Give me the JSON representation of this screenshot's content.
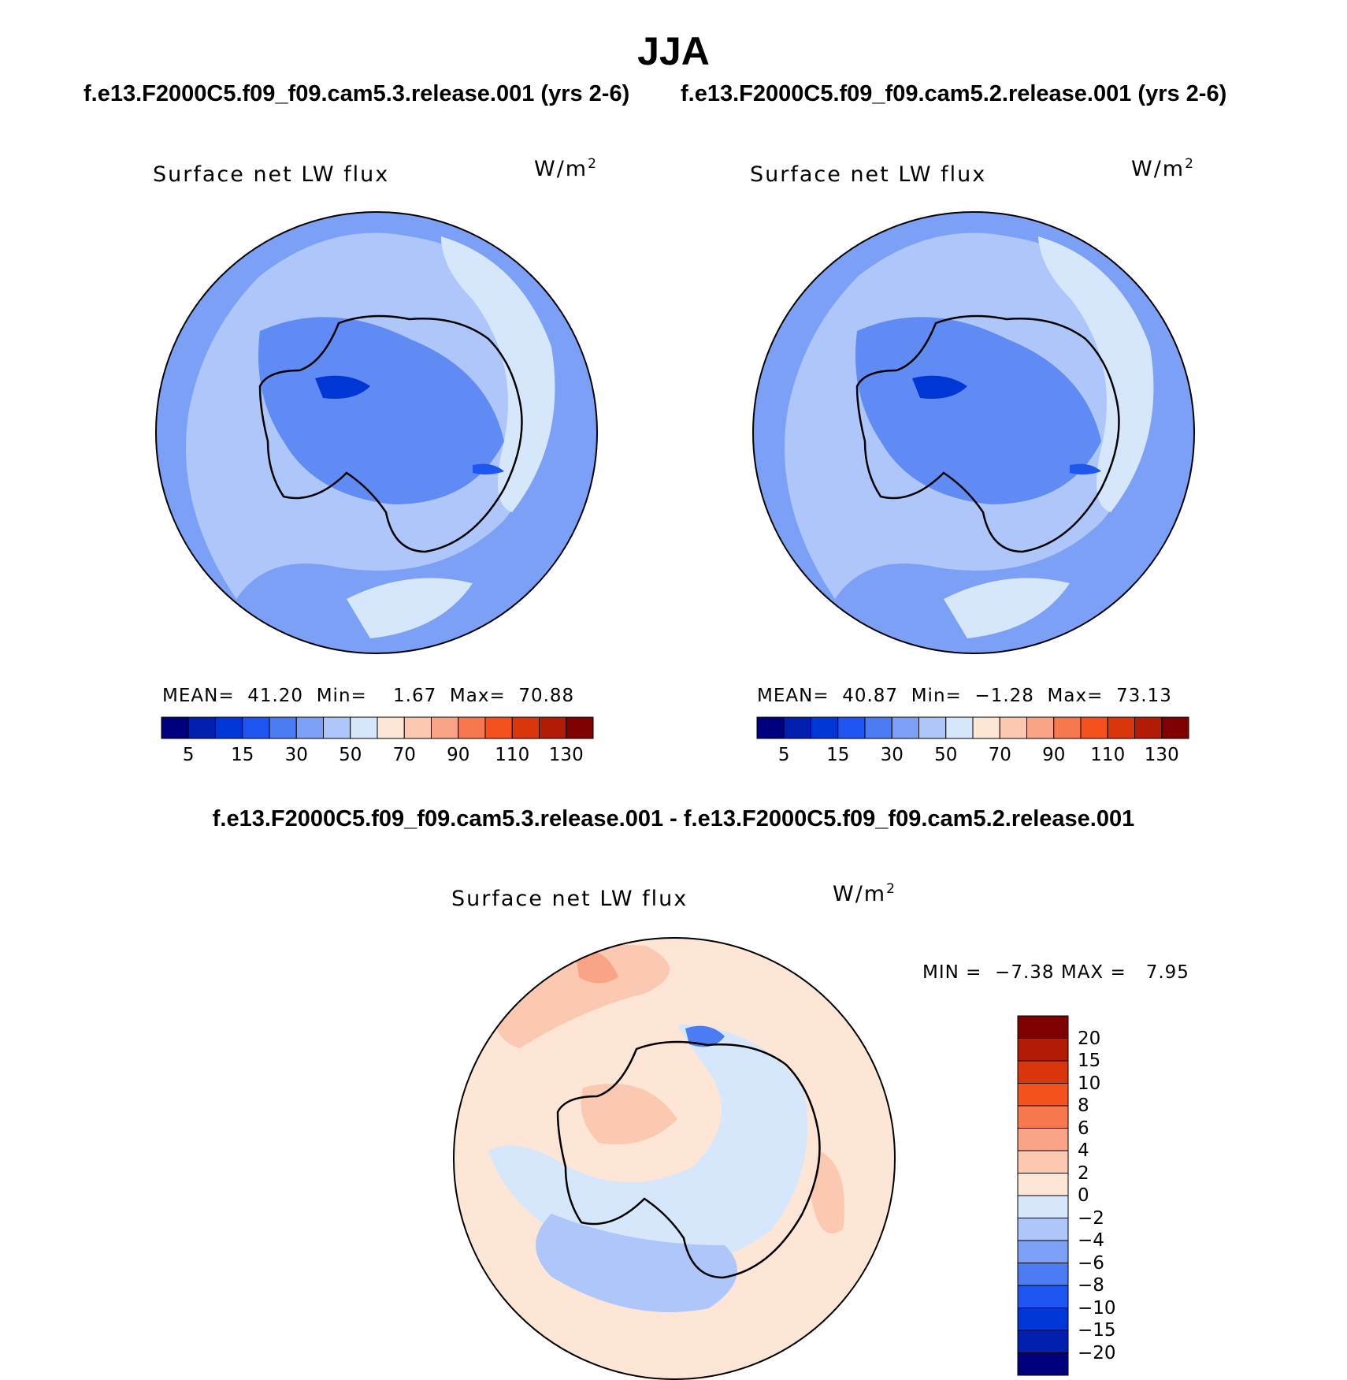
{
  "figure": {
    "title": "JJA",
    "subtitle_left": "f.e13.F2000C5.f09_f09.cam5.3.release.001 (yrs 2-6)",
    "subtitle_right": "f.e13.F2000C5.f09_f09.cam5.2.release.001 (yrs 2-6)",
    "diff_title": "f.e13.F2000C5.f09_f09.cam5.3.release.001 - f.e13.F2000C5.f09_f09.cam5.2.release.001"
  },
  "colors": {
    "abs_scale": [
      "#00007f",
      "#001fae",
      "#0036d6",
      "#1f55f0",
      "#4c7cf4",
      "#7da0f7",
      "#aec6fa",
      "#d6e6fb",
      "#fde6d6",
      "#fbc8b2",
      "#f9a486",
      "#f7784f",
      "#f5511f",
      "#db350c",
      "#b21b05",
      "#7f0000"
    ],
    "diff_scale": [
      "#7f0000",
      "#b21b05",
      "#db350c",
      "#f5511f",
      "#f7784f",
      "#f9a486",
      "#fbc8b2",
      "#fde6d6",
      "#d6e6fb",
      "#aec6fa",
      "#7da0f7",
      "#4c7cf4",
      "#1f55f0",
      "#0036d6",
      "#001fae",
      "#00007f"
    ]
  },
  "chart_data": [
    {
      "type": "heatmap",
      "projection": "south-polar stereographic",
      "title": "Surface net LW flux",
      "units_base": "W/m",
      "units_exp": "2",
      "stats": {
        "mean_label": "MEAN=",
        "mean": "41.20",
        "min_label": "Min=",
        "min": "1.67",
        "max_label": "Max=",
        "max": "70.88"
      },
      "colorbar": {
        "levels": [
          "5",
          "15",
          "30",
          "50",
          "70",
          "90",
          "110",
          "130"
        ]
      }
    },
    {
      "type": "heatmap",
      "projection": "south-polar stereographic",
      "title": "Surface net LW flux",
      "units_base": "W/m",
      "units_exp": "2",
      "stats": {
        "mean_label": "MEAN=",
        "mean": "40.87",
        "min_label": "Min=",
        "min": "−1.28",
        "max_label": "Max=",
        "max": "73.13"
      },
      "colorbar": {
        "levels": [
          "5",
          "15",
          "30",
          "50",
          "70",
          "90",
          "110",
          "130"
        ]
      }
    },
    {
      "type": "heatmap",
      "projection": "south-polar stereographic",
      "title": "Surface net LW flux",
      "units_base": "W/m",
      "units_exp": "2",
      "stats": {
        "min_label": "MIN =",
        "min": "−7.38",
        "max_label": "MAX =",
        "max": "7.95"
      },
      "colorbar": {
        "levels": [
          "20",
          "15",
          "10",
          "8",
          "6",
          "4",
          "2",
          "0",
          "−2",
          "−4",
          "−6",
          "−8",
          "−10",
          "−15",
          "−20"
        ]
      }
    }
  ]
}
